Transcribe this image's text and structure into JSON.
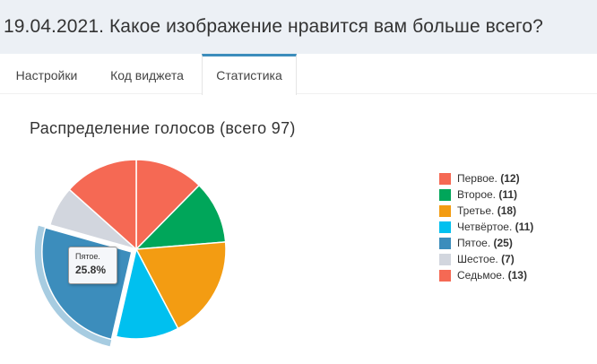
{
  "page": {
    "title": "19.04.2021. Какое изображение нравится вам больше всего?"
  },
  "tabs": [
    {
      "label": "Настройки",
      "active": false
    },
    {
      "label": "Код виджета",
      "active": false
    },
    {
      "label": "Статистика",
      "active": true
    }
  ],
  "chart_data": {
    "type": "pie",
    "title": "Распределение голосов (всего 97)",
    "total": 97,
    "slices": [
      {
        "name": "Первое.",
        "value": 12,
        "color": "#f56954"
      },
      {
        "name": "Второе.",
        "value": 11,
        "color": "#00a65a"
      },
      {
        "name": "Третье.",
        "value": 18,
        "color": "#f39c12"
      },
      {
        "name": "Четвёртое.",
        "value": 11,
        "color": "#00c0ef"
      },
      {
        "name": "Пятое.",
        "value": 25,
        "color": "#3c8dbc",
        "highlighted": true
      },
      {
        "name": "Шестое.",
        "value": 7,
        "color": "#d2d6de"
      },
      {
        "name": "Седьмое.",
        "value": 13,
        "color": "#f56954"
      }
    ],
    "legend_position": "right",
    "tooltip": {
      "label": "Пятое.",
      "value": "25.8%"
    }
  }
}
